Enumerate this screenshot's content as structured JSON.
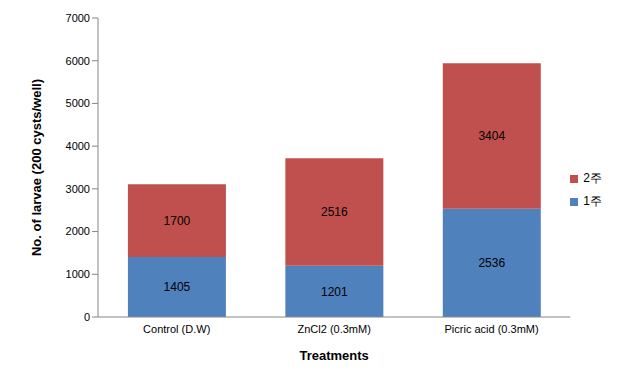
{
  "chart_data": {
    "type": "bar",
    "stacked": true,
    "data_labels": true,
    "legend": "right",
    "grid": false,
    "categories": [
      "Control (D.W)",
      "ZnCl2  (0.3mM)",
      "Picric acid  (0.3mM)"
    ],
    "series": [
      {
        "name": "1주",
        "color": "#4F81BD",
        "values": [
          1405,
          1201,
          2536
        ]
      },
      {
        "name": "2주",
        "color": "#C0504D",
        "values": [
          1700,
          2516,
          3404
        ]
      }
    ],
    "x_label": "Treatments",
    "y_label": "No. of larvae (200 cysts/well)",
    "ylim": [
      0,
      7000
    ],
    "yticks": [
      0,
      1000,
      2000,
      3000,
      4000,
      5000,
      6000,
      7000
    ]
  }
}
